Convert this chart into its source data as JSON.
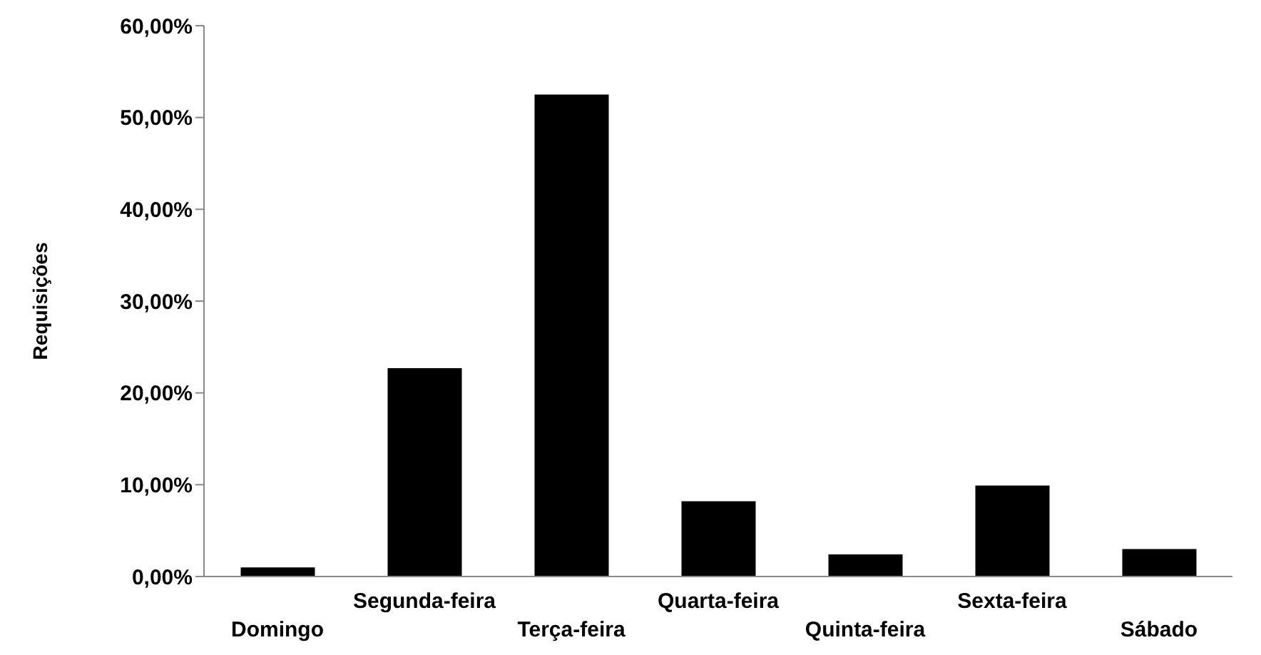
{
  "chart_data": {
    "type": "bar",
    "ylabel": "Requisições",
    "categories": [
      "Domingo",
      "Segunda-feira",
      "Terça-feira",
      "Quarta-feira",
      "Quinta-feira",
      "Sexta-feira",
      "Sábado"
    ],
    "values": [
      1.0,
      22.7,
      52.5,
      8.2,
      2.4,
      9.9,
      3.0
    ],
    "color": "#000000",
    "ylim": [
      0,
      60
    ],
    "yticks": [
      {
        "value": 0,
        "label": "0,00%"
      },
      {
        "value": 10,
        "label": "10,00%"
      },
      {
        "value": 20,
        "label": "20,00%"
      },
      {
        "value": 30,
        "label": "30,00%"
      },
      {
        "value": 40,
        "label": "40,00%"
      },
      {
        "value": 50,
        "label": "50,00%"
      },
      {
        "value": 60,
        "label": "60,00%"
      }
    ],
    "grid": false,
    "legend": false
  }
}
